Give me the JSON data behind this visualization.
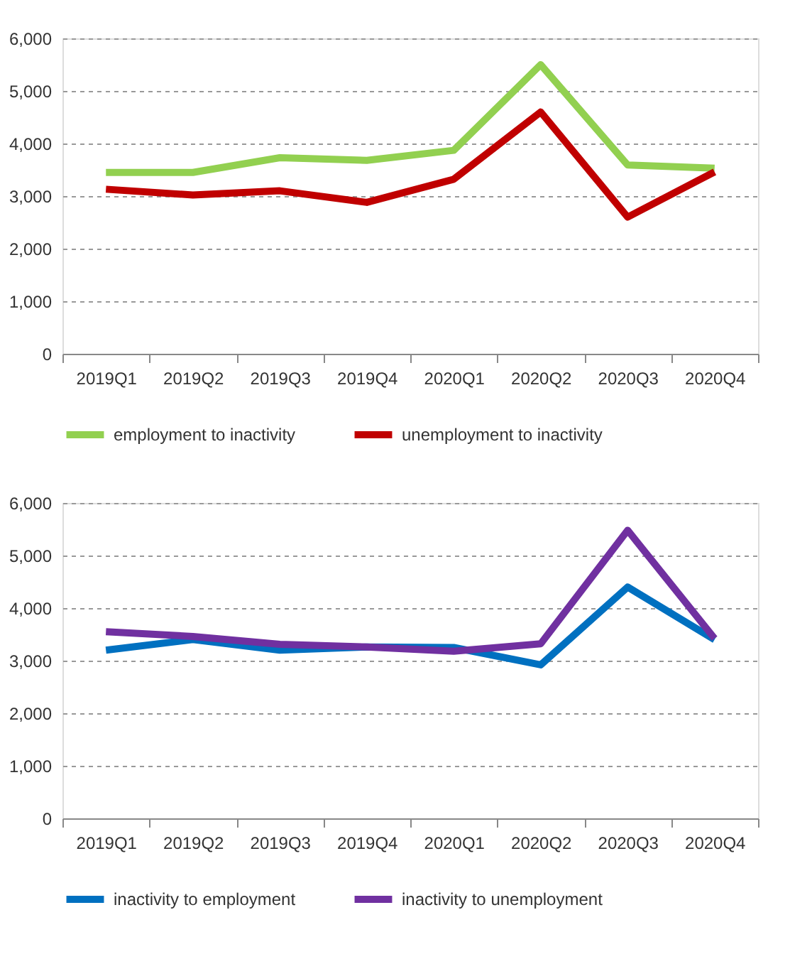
{
  "chart_data": [
    {
      "type": "line",
      "categories": [
        "2019Q1",
        "2019Q2",
        "2019Q3",
        "2019Q4",
        "2020Q1",
        "2020Q2",
        "2020Q3",
        "2020Q4"
      ],
      "ylim": [
        0,
        6000
      ],
      "yticks": [
        {
          "value": 0,
          "label": "0"
        },
        {
          "value": 1000,
          "label": "1,000"
        },
        {
          "value": 2000,
          "label": "2,000"
        },
        {
          "value": 3000,
          "label": "3,000"
        },
        {
          "value": 4000,
          "label": "4,000"
        },
        {
          "value": 5000,
          "label": "5,000"
        },
        {
          "value": 6000,
          "label": "6,000"
        }
      ],
      "grid": "y",
      "legend": "bottom",
      "line_style": "solid",
      "marker": "none",
      "series": [
        {
          "name": "employment to inactivity",
          "color": "#92d050",
          "values": [
            3450,
            3450,
            3730,
            3680,
            3870,
            5500,
            3590,
            3530
          ]
        },
        {
          "name": "unemployment to inactivity",
          "color": "#c00000",
          "values": [
            3130,
            3020,
            3100,
            2880,
            3320,
            4600,
            2600,
            3460
          ]
        }
      ]
    },
    {
      "type": "line",
      "categories": [
        "2019Q1",
        "2019Q2",
        "2019Q3",
        "2019Q4",
        "2020Q1",
        "2020Q2",
        "2020Q3",
        "2020Q4"
      ],
      "ylim": [
        0,
        6000
      ],
      "yticks": [
        {
          "value": 0,
          "label": "0"
        },
        {
          "value": 1000,
          "label": "1,000"
        },
        {
          "value": 2000,
          "label": "2,000"
        },
        {
          "value": 3000,
          "label": "3,000"
        },
        {
          "value": 4000,
          "label": "4,000"
        },
        {
          "value": 5000,
          "label": "5,000"
        },
        {
          "value": 6000,
          "label": "6,000"
        }
      ],
      "grid": "y",
      "legend": "bottom",
      "line_style": "solid",
      "marker": "none",
      "series": [
        {
          "name": "inactivity to employment",
          "color": "#0070c0",
          "values": [
            3200,
            3400,
            3200,
            3260,
            3250,
            2920,
            4400,
            3400
          ]
        },
        {
          "name": "inactivity to unemployment",
          "color": "#7030a0",
          "values": [
            3550,
            3460,
            3310,
            3260,
            3180,
            3320,
            5480,
            3420
          ]
        }
      ]
    }
  ]
}
